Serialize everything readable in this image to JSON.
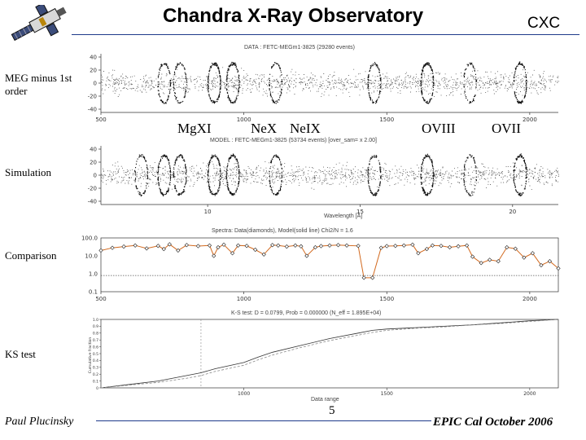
{
  "header": {
    "title": "Chandra X-Ray Observatory",
    "org": "CXC",
    "logo_icon": "chandra-satellite-icon"
  },
  "side_labels": {
    "data": "MEG minus 1st order",
    "simulation": "Simulation",
    "comparison": "Comparison",
    "ks": "KS test"
  },
  "ion_labels": [
    "MgXI",
    "NeX",
    "NeIX",
    "OVIII",
    "OVII"
  ],
  "footer": {
    "author": "Paul Plucinsky",
    "page": "5",
    "event": "EPIC Cal October 2006"
  },
  "chart_data": [
    {
      "type": "scatter",
      "title": "DATA : FETC-MEGm1-3825 (29280 events)",
      "xlim": [
        500,
        2100
      ],
      "ylim": [
        -45,
        45
      ],
      "yticks": [
        40,
        20,
        0,
        -20,
        -40
      ],
      "xticks": [
        500,
        1000,
        1500,
        2000
      ],
      "xtick_labels": [
        "500",
        "1000",
        "1500",
        "2000"
      ],
      "rings_x": [
        720,
        775,
        895,
        960,
        1110,
        1455,
        1640,
        1790,
        1965
      ],
      "ring_strength": [
        0.6,
        0.5,
        1.0,
        0.9,
        0.55,
        0.7,
        1.0,
        0.4,
        0.8
      ]
    },
    {
      "type": "scatter",
      "title": "MODEL : FETC-MEGm1-3825 (53734 events) [over_sam= x 2.00]",
      "xlabel": "Wavelength [Å]",
      "xlim": [
        500,
        2100
      ],
      "ylim": [
        -45,
        45
      ],
      "yticks": [
        40,
        20,
        0,
        -20,
        -40
      ],
      "xticks": [
        10,
        15,
        20
      ],
      "xtick_labels": [
        "10",
        "15",
        "20"
      ],
      "rings_x": [
        640,
        720,
        775,
        895,
        960,
        1110,
        1455,
        1640,
        1790,
        1965
      ],
      "ring_strength": [
        0.5,
        0.8,
        0.7,
        1.0,
        0.9,
        0.6,
        0.75,
        1.0,
        0.45,
        0.8
      ]
    },
    {
      "type": "line",
      "title": "Spectra: Data(diamonds), Model(solid line)  Chi2/N = 1.6",
      "xlim": [
        500,
        2100
      ],
      "ylim": [
        0.1,
        100
      ],
      "yscale": "log",
      "yticks": [
        100,
        10,
        1,
        0.1
      ],
      "ytick_labels": [
        "100.0",
        "10.0",
        "1.0",
        "0.1"
      ],
      "xticks": [
        500,
        1000,
        1500,
        2000
      ],
      "xtick_labels": [
        "500",
        "1000",
        "1500",
        "2000"
      ],
      "series": [
        {
          "x": [
            500,
            540,
            580,
            620,
            660,
            700,
            720,
            740,
            770,
            800,
            840,
            880,
            895,
            910,
            930,
            960,
            980,
            1010,
            1040,
            1070,
            1100,
            1120,
            1150,
            1180,
            1200,
            1220,
            1250,
            1270,
            1300,
            1330,
            1360,
            1400,
            1420,
            1450,
            1480,
            1500,
            1530,
            1560,
            1590,
            1610,
            1640,
            1660,
            1690,
            1720,
            1750,
            1780,
            1800,
            1830,
            1860,
            1890,
            1920,
            1950,
            1980,
            2010,
            2040,
            2070,
            2100
          ],
          "y": [
            20,
            28,
            33,
            38,
            26,
            36,
            24,
            44,
            20,
            40,
            35,
            38,
            10,
            30,
            42,
            14,
            38,
            36,
            22,
            12,
            40,
            38,
            33,
            38,
            34,
            10,
            30,
            35,
            38,
            40,
            38,
            36,
            0.6,
            0.6,
            28,
            35,
            36,
            38,
            42,
            14,
            24,
            38,
            36,
            30,
            34,
            38,
            9,
            4,
            6,
            5,
            30,
            25,
            8,
            14,
            3,
            5,
            2
          ]
        },
        {
          "x": [
            500,
            700,
            900,
            1100,
            1300,
            1500,
            1700,
            1900,
            2100
          ],
          "y": [
            0.8,
            0.8,
            0.8,
            0.8,
            0.8,
            0.8,
            0.8,
            0.8,
            0.8
          ]
        }
      ]
    },
    {
      "type": "line",
      "title": "K-S test: D = 0.0799, Prob = 0.000000 (N_eff = 1.895E+04)",
      "xlabel": "Data range",
      "ylabel": "Cumulative fraction",
      "xlim": [
        500,
        2100
      ],
      "ylim": [
        0,
        1
      ],
      "yticks": [
        0,
        0.1,
        0.2,
        0.3,
        0.4,
        0.5,
        0.6,
        0.7,
        0.8,
        0.9,
        1.0
      ],
      "ytick_labels": [
        "0",
        "0.1",
        "0.2",
        "0.3",
        "0.4",
        "0.5",
        "0.6",
        "0.7",
        "0.8",
        "0.9",
        "1.0"
      ],
      "xticks": [
        1000,
        1500,
        2000
      ],
      "xtick_labels": [
        "1000",
        "1500",
        "2000"
      ],
      "marker_x": 850,
      "series": [
        {
          "x": [
            500,
            600,
            700,
            800,
            850,
            900,
            1000,
            1050,
            1100,
            1200,
            1300,
            1400,
            1450,
            1500,
            1600,
            1700,
            1800,
            1900,
            2000,
            2100
          ],
          "y": [
            0.0,
            0.05,
            0.1,
            0.18,
            0.22,
            0.28,
            0.37,
            0.45,
            0.52,
            0.62,
            0.72,
            0.8,
            0.84,
            0.86,
            0.88,
            0.9,
            0.92,
            0.95,
            0.98,
            1.0
          ]
        },
        {
          "x": [
            500,
            600,
            700,
            800,
            850,
            900,
            1000,
            1050,
            1100,
            1200,
            1300,
            1400,
            1450,
            1500,
            1600,
            1700,
            1800,
            1900,
            2000,
            2100
          ],
          "y": [
            0.0,
            0.04,
            0.08,
            0.14,
            0.18,
            0.24,
            0.33,
            0.41,
            0.48,
            0.59,
            0.69,
            0.77,
            0.81,
            0.84,
            0.87,
            0.89,
            0.92,
            0.94,
            0.97,
            1.0
          ]
        }
      ]
    }
  ]
}
